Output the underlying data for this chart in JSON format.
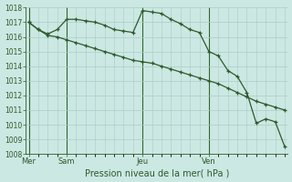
{
  "background_color": "#cce8e2",
  "grid_color": "#aaccc8",
  "line_color": "#2d5a2d",
  "vline_color": "#336633",
  "xlabel": "Pression niveau de la mer( hPa )",
  "ylim": [
    1008,
    1018
  ],
  "ytick_values": [
    1008,
    1009,
    1010,
    1011,
    1012,
    1013,
    1014,
    1015,
    1016,
    1017,
    1018
  ],
  "day_labels": [
    "Mer",
    "Sam",
    "Jeu",
    "Ven"
  ],
  "total_points": 28,
  "line1_x": [
    0,
    1,
    2,
    3,
    4,
    5,
    6,
    7,
    8,
    9,
    10,
    11,
    12,
    13,
    14,
    15,
    16,
    17,
    18,
    19,
    20,
    21,
    22,
    23,
    24,
    25,
    26,
    27
  ],
  "line1_y": [
    1017.0,
    1016.5,
    1016.1,
    1016.0,
    1015.8,
    1015.6,
    1015.4,
    1015.2,
    1015.0,
    1014.8,
    1014.6,
    1014.4,
    1014.3,
    1014.2,
    1014.0,
    1013.8,
    1013.6,
    1013.4,
    1013.2,
    1013.0,
    1012.8,
    1012.5,
    1012.2,
    1011.9,
    1011.6,
    1011.4,
    1011.2,
    1011.0
  ],
  "line2_x": [
    0,
    1,
    2,
    3,
    4,
    5,
    6,
    7,
    8,
    9,
    10,
    11,
    12,
    13,
    14,
    15,
    16,
    17,
    18,
    19,
    20,
    21,
    22,
    23,
    24,
    25,
    26,
    27
  ],
  "line2_y": [
    1017.0,
    1016.5,
    1016.2,
    1016.5,
    1017.2,
    1017.2,
    1017.1,
    1017.0,
    1016.8,
    1016.5,
    1016.4,
    1016.3,
    1017.8,
    1017.7,
    1017.6,
    1017.2,
    1016.9,
    1016.5,
    1016.3,
    1015.0,
    1014.7,
    1013.7,
    1013.3,
    1012.2,
    1010.1,
    1010.4,
    1010.2,
    1008.5
  ],
  "vline_x": [
    0,
    4,
    12,
    19
  ],
  "xlabel_fontsize": 7,
  "ytick_fontsize": 5.5,
  "xtick_fontsize": 6,
  "linewidth": 0.9,
  "markersize": 3.5,
  "markeredgewidth": 0.9
}
